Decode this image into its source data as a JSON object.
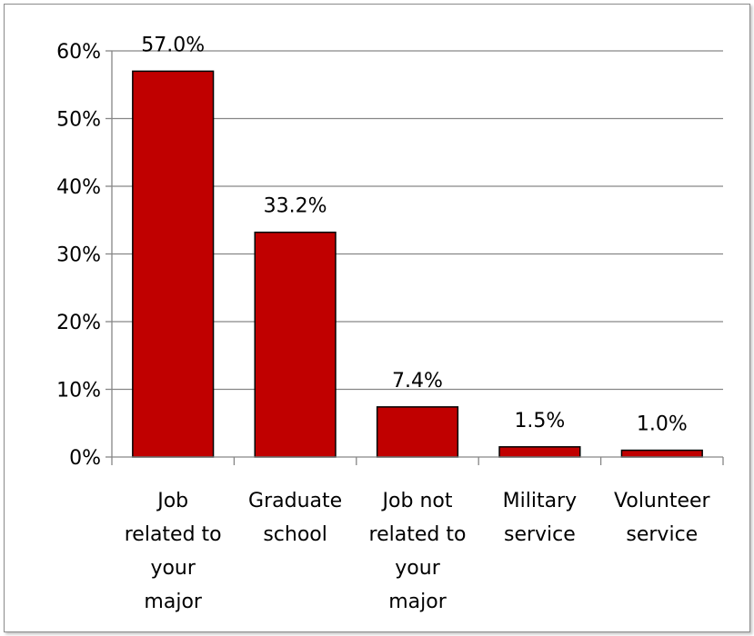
{
  "chart_data": {
    "type": "bar",
    "title": "",
    "xlabel": "",
    "ylabel": "",
    "categories": [
      [
        "Job",
        "related to",
        "your",
        "major"
      ],
      [
        "Graduate",
        "school"
      ],
      [
        "Job not",
        "related to",
        "your",
        "major"
      ],
      [
        "Military",
        "service"
      ],
      [
        "Volunteer",
        "service"
      ]
    ],
    "values": [
      57.0,
      33.2,
      7.4,
      1.5,
      1.0
    ],
    "data_labels": [
      "57.0%",
      "33.2%",
      "7.4%",
      "1.5%",
      "1.0%"
    ],
    "ylim": [
      0,
      60
    ],
    "yticks": [
      0,
      10,
      20,
      30,
      40,
      50,
      60
    ],
    "ytick_labels": [
      "0%",
      "10%",
      "20%",
      "30%",
      "40%",
      "50%",
      "60%"
    ],
    "grid": true,
    "legend": "none",
    "colors": {
      "bar_fill": "#c00000",
      "bar_stroke": "#000000",
      "gridline": "#868686",
      "axis": "#868686"
    }
  }
}
